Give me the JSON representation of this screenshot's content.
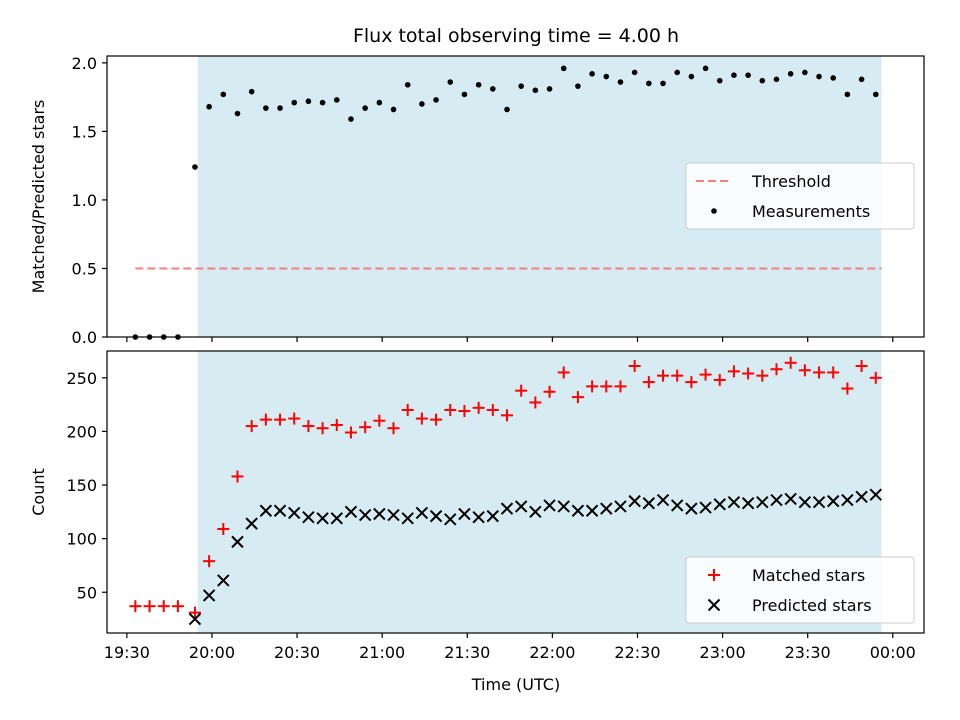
{
  "figure": {
    "title": "Flux total observing time = 4.00 h",
    "shade_color": "#add8e6",
    "shade_start": "19:55",
    "shade_end": "23:56"
  },
  "chart_data": [
    {
      "type": "scatter",
      "ylabel": "Matched/Predicted stars",
      "ylim": [
        0,
        2.05
      ],
      "yticks": [
        "0.0",
        "0.5",
        "1.0",
        "1.5",
        "2.0"
      ],
      "xlim": [
        "19:23",
        "00:11"
      ],
      "xticks": [
        "19:30",
        "20:00",
        "20:30",
        "21:00",
        "21:30",
        "22:00",
        "22:30",
        "23:00",
        "23:30",
        "00:00"
      ],
      "legend_position": "center-right",
      "threshold": {
        "name": "Threshold",
        "value": 0.5,
        "x_start": "19:33",
        "x_end": "23:56",
        "color": "#f08080"
      },
      "series": [
        {
          "name": "Measurements",
          "color": "#000000",
          "points": [
            [
              "19:33",
              0.0
            ],
            [
              "19:38",
              0.0
            ],
            [
              "19:43",
              0.0
            ],
            [
              "19:48",
              0.0
            ],
            [
              "19:54",
              1.24
            ],
            [
              "19:59",
              1.68
            ],
            [
              "20:04",
              1.77
            ],
            [
              "20:09",
              1.63
            ],
            [
              "20:14",
              1.79
            ],
            [
              "20:19",
              1.67
            ],
            [
              "20:24",
              1.67
            ],
            [
              "20:29",
              1.71
            ],
            [
              "20:34",
              1.72
            ],
            [
              "20:39",
              1.71
            ],
            [
              "20:44",
              1.73
            ],
            [
              "20:49",
              1.59
            ],
            [
              "20:54",
              1.67
            ],
            [
              "20:59",
              1.71
            ],
            [
              "21:04",
              1.66
            ],
            [
              "21:09",
              1.84
            ],
            [
              "21:14",
              1.7
            ],
            [
              "21:19",
              1.73
            ],
            [
              "21:24",
              1.86
            ],
            [
              "21:29",
              1.77
            ],
            [
              "21:34",
              1.84
            ],
            [
              "21:39",
              1.81
            ],
            [
              "21:44",
              1.66
            ],
            [
              "21:49",
              1.83
            ],
            [
              "21:54",
              1.8
            ],
            [
              "21:59",
              1.81
            ],
            [
              "22:04",
              1.96
            ],
            [
              "22:09",
              1.83
            ],
            [
              "22:14",
              1.92
            ],
            [
              "22:19",
              1.9
            ],
            [
              "22:24",
              1.86
            ],
            [
              "22:29",
              1.93
            ],
            [
              "22:34",
              1.85
            ],
            [
              "22:39",
              1.85
            ],
            [
              "22:44",
              1.93
            ],
            [
              "22:49",
              1.9
            ],
            [
              "22:54",
              1.96
            ],
            [
              "22:59",
              1.87
            ],
            [
              "23:04",
              1.91
            ],
            [
              "23:09",
              1.91
            ],
            [
              "23:14",
              1.87
            ],
            [
              "23:19",
              1.88
            ],
            [
              "23:24",
              1.92
            ],
            [
              "23:29",
              1.93
            ],
            [
              "23:34",
              1.9
            ],
            [
              "23:39",
              1.89
            ],
            [
              "23:44",
              1.77
            ],
            [
              "23:49",
              1.88
            ],
            [
              "23:54",
              1.77
            ]
          ]
        }
      ]
    },
    {
      "type": "scatter",
      "xlabel": "Time (UTC)",
      "ylabel": "Count",
      "ylim": [
        12,
        275
      ],
      "yticks": [
        "50",
        "100",
        "150",
        "200",
        "250"
      ],
      "xlim": [
        "19:23",
        "00:11"
      ],
      "xticks": [
        "19:30",
        "20:00",
        "20:30",
        "21:00",
        "21:30",
        "22:00",
        "22:30",
        "23:00",
        "23:30",
        "00:00"
      ],
      "legend_position": "lower-right",
      "series": [
        {
          "name": "Matched stars",
          "marker": "plus",
          "color": "#ff0000",
          "points": [
            [
              "19:33",
              37
            ],
            [
              "19:38",
              37
            ],
            [
              "19:43",
              37
            ],
            [
              "19:48",
              37
            ],
            [
              "19:54",
              31
            ],
            [
              "19:59",
              79
            ],
            [
              "20:04",
              109
            ],
            [
              "20:09",
              158
            ],
            [
              "20:14",
              205
            ],
            [
              "20:19",
              211
            ],
            [
              "20:24",
              211
            ],
            [
              "20:29",
              212
            ],
            [
              "20:34",
              205
            ],
            [
              "20:39",
              203
            ],
            [
              "20:44",
              206
            ],
            [
              "20:49",
              199
            ],
            [
              "20:54",
              204
            ],
            [
              "20:59",
              210
            ],
            [
              "21:04",
              203
            ],
            [
              "21:09",
              220
            ],
            [
              "21:14",
              212
            ],
            [
              "21:19",
              211
            ],
            [
              "21:24",
              220
            ],
            [
              "21:29",
              219
            ],
            [
              "21:34",
              222
            ],
            [
              "21:39",
              220
            ],
            [
              "21:44",
              215
            ],
            [
              "21:49",
              238
            ],
            [
              "21:54",
              227
            ],
            [
              "21:59",
              237
            ],
            [
              "22:04",
              255
            ],
            [
              "22:09",
              232
            ],
            [
              "22:14",
              242
            ],
            [
              "22:19",
              242
            ],
            [
              "22:24",
              242
            ],
            [
              "22:29",
              261
            ],
            [
              "22:34",
              246
            ],
            [
              "22:39",
              252
            ],
            [
              "22:44",
              252
            ],
            [
              "22:49",
              246
            ],
            [
              "22:54",
              253
            ],
            [
              "22:59",
              248
            ],
            [
              "23:04",
              256
            ],
            [
              "23:09",
              254
            ],
            [
              "23:14",
              252
            ],
            [
              "23:19",
              258
            ],
            [
              "23:24",
              264
            ],
            [
              "23:29",
              257
            ],
            [
              "23:34",
              255
            ],
            [
              "23:39",
              255
            ],
            [
              "23:44",
              240
            ],
            [
              "23:49",
              261
            ],
            [
              "23:54",
              250
            ]
          ]
        },
        {
          "name": "Predicted stars",
          "marker": "x",
          "color": "#000000",
          "points": [
            [
              "19:54",
              25
            ],
            [
              "19:59",
              47
            ],
            [
              "20:04",
              61
            ],
            [
              "20:09",
              97
            ],
            [
              "20:14",
              114
            ],
            [
              "20:19",
              126
            ],
            [
              "20:24",
              126
            ],
            [
              "20:29",
              124
            ],
            [
              "20:34",
              120
            ],
            [
              "20:39",
              119
            ],
            [
              "20:44",
              119
            ],
            [
              "20:49",
              125
            ],
            [
              "20:54",
              122
            ],
            [
              "20:59",
              123
            ],
            [
              "21:04",
              122
            ],
            [
              "21:09",
              119
            ],
            [
              "21:14",
              124
            ],
            [
              "21:19",
              121
            ],
            [
              "21:24",
              118
            ],
            [
              "21:29",
              123
            ],
            [
              "21:34",
              120
            ],
            [
              "21:39",
              121
            ],
            [
              "21:44",
              128
            ],
            [
              "21:49",
              130
            ],
            [
              "21:54",
              125
            ],
            [
              "21:59",
              131
            ],
            [
              "22:04",
              130
            ],
            [
              "22:09",
              126
            ],
            [
              "22:14",
              126
            ],
            [
              "22:19",
              128
            ],
            [
              "22:24",
              130
            ],
            [
              "22:29",
              135
            ],
            [
              "22:34",
              133
            ],
            [
              "22:39",
              136
            ],
            [
              "22:44",
              131
            ],
            [
              "22:49",
              128
            ],
            [
              "22:54",
              129
            ],
            [
              "22:59",
              132
            ],
            [
              "23:04",
              134
            ],
            [
              "23:09",
              133
            ],
            [
              "23:14",
              134
            ],
            [
              "23:19",
              136
            ],
            [
              "23:24",
              137
            ],
            [
              "23:29",
              134
            ],
            [
              "23:34",
              134
            ],
            [
              "23:39",
              135
            ],
            [
              "23:44",
              136
            ],
            [
              "23:49",
              139
            ],
            [
              "23:54",
              141
            ]
          ]
        }
      ]
    }
  ]
}
